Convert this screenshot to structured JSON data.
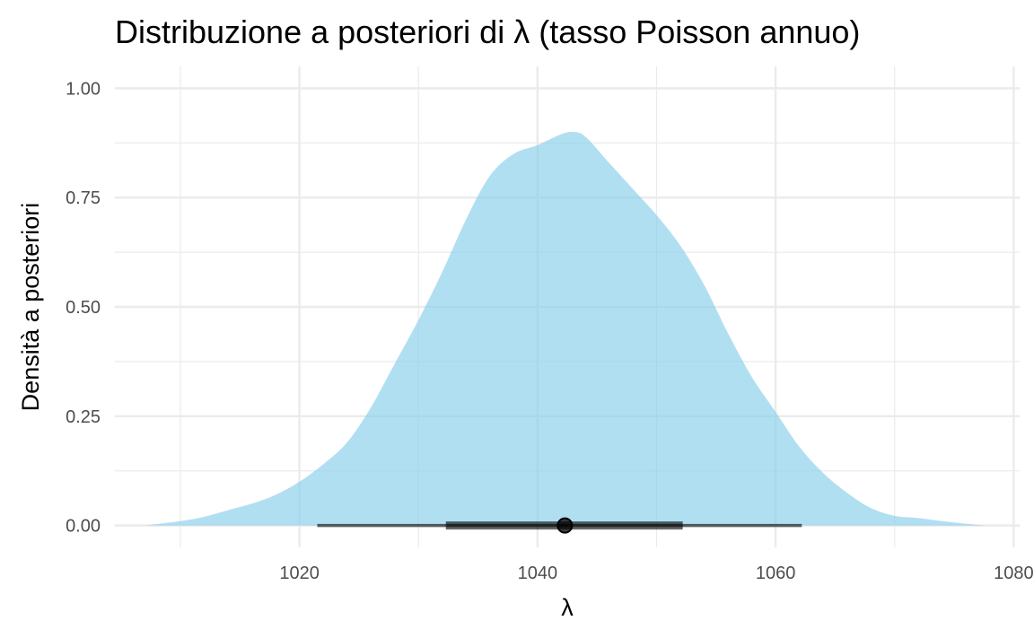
{
  "chart_data": {
    "type": "area",
    "title": "Distribuzione a posteriori di λ (tasso Poisson annuo)",
    "xlabel": "λ",
    "ylabel": "Densità a posteriori",
    "xlim": [
      1004.5,
      1080.5
    ],
    "ylim": [
      -0.05,
      1.05
    ],
    "x_ticks": [
      1020,
      1040,
      1060,
      1080
    ],
    "x_tick_labels": [
      "1020",
      "1040",
      "1060",
      "1080"
    ],
    "y_ticks": [
      0,
      0.25,
      0.5,
      0.75,
      1.0
    ],
    "y_tick_labels": [
      "0.00",
      "0.25",
      "0.50",
      "0.75",
      "1.00"
    ],
    "grid": true,
    "legend": "none",
    "colors": {
      "fill": "#87ceeb",
      "interval": "#000000"
    },
    "density": {
      "x": [
        1007,
        1010,
        1012,
        1014,
        1016,
        1018,
        1020,
        1022,
        1024,
        1026,
        1028,
        1030,
        1032,
        1034,
        1036,
        1038,
        1040,
        1042,
        1043,
        1044,
        1046,
        1048,
        1050,
        1052,
        1054,
        1056,
        1058,
        1060,
        1062,
        1064,
        1066,
        1068,
        1070,
        1072,
        1074,
        1076,
        1077.5
      ],
      "y": [
        0.0,
        0.01,
        0.02,
        0.035,
        0.05,
        0.07,
        0.1,
        0.14,
        0.19,
        0.27,
        0.37,
        0.47,
        0.58,
        0.7,
        0.8,
        0.85,
        0.87,
        0.895,
        0.9,
        0.89,
        0.83,
        0.77,
        0.71,
        0.64,
        0.55,
        0.44,
        0.34,
        0.26,
        0.18,
        0.12,
        0.075,
        0.04,
        0.022,
        0.017,
        0.01,
        0.004,
        0.0
      ]
    },
    "point_estimate": 1042.3,
    "interval_66": [
      1032.3,
      1052.2
    ],
    "interval_95": [
      1021.5,
      1062.2
    ]
  }
}
